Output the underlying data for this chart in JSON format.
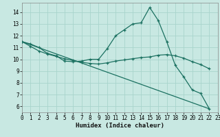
{
  "bg_color": "#c8e8e2",
  "grid_color": "#a8d4cc",
  "line_color": "#1a7060",
  "xlabel": "Humidex (Indice chaleur)",
  "xlim": [
    0,
    23
  ],
  "ylim": [
    5.5,
    14.8
  ],
  "xticks": [
    0,
    1,
    2,
    3,
    4,
    5,
    6,
    7,
    8,
    9,
    10,
    11,
    12,
    13,
    14,
    15,
    16,
    17,
    18,
    19,
    20,
    21,
    22,
    23
  ],
  "yticks": [
    6,
    7,
    8,
    9,
    10,
    11,
    12,
    13,
    14
  ],
  "curve1_x": [
    0,
    1,
    2,
    3,
    4,
    5,
    6,
    7,
    8,
    9,
    10,
    11,
    12,
    13,
    14,
    15,
    16,
    17,
    18,
    19,
    20,
    21,
    22
  ],
  "curve1_y": [
    11.5,
    11.3,
    11.0,
    10.5,
    10.3,
    9.85,
    9.8,
    9.85,
    10.0,
    10.0,
    10.9,
    12.0,
    12.5,
    13.0,
    13.1,
    14.4,
    13.3,
    11.5,
    9.5,
    8.5,
    7.4,
    7.1,
    5.8
  ],
  "curve2_x": [
    0,
    1,
    2,
    3,
    4,
    5,
    6,
    7,
    8,
    9,
    10,
    11,
    12,
    13,
    14,
    15,
    16,
    17,
    18,
    19,
    20,
    21,
    22
  ],
  "curve2_y": [
    11.5,
    11.1,
    10.7,
    10.45,
    10.25,
    10.05,
    9.9,
    9.75,
    9.65,
    9.6,
    9.7,
    9.85,
    9.95,
    10.05,
    10.15,
    10.2,
    10.35,
    10.4,
    10.3,
    10.1,
    9.8,
    9.55,
    9.2
  ],
  "curve3_x": [
    0,
    22
  ],
  "curve3_y": [
    11.5,
    5.8
  ]
}
